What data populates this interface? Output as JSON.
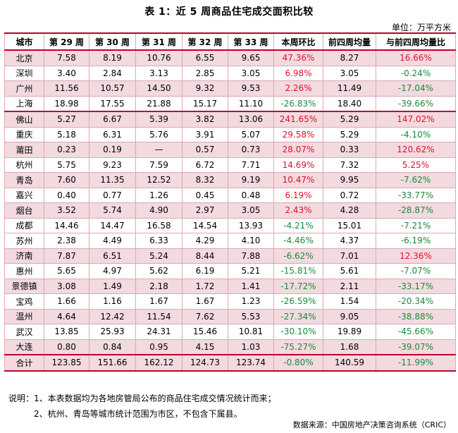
{
  "title": "表 1：近 5 周商品住宅成交面积比较",
  "unit": "单位：万平方米",
  "columns": [
    "城市",
    "第 29 周",
    "第 30 周",
    "第 31 周",
    "第 32 周",
    "第 33 周",
    "本周环比",
    "前四周均量",
    "与前四周均量比"
  ],
  "colors": {
    "accent": "#c0002c",
    "highlight": "#f2dadf",
    "up": "#e0102c",
    "down": "#1a8a3a"
  },
  "rows": [
    {
      "city": "北京",
      "w29": "7.58",
      "w30": "8.19",
      "w31": "10.76",
      "w32": "6.55",
      "w33": "9.65",
      "wow": "47.36%",
      "avg4": "8.27",
      "vsavg": "16.66%"
    },
    {
      "city": "深圳",
      "w29": "3.40",
      "w30": "2.84",
      "w31": "3.13",
      "w32": "2.85",
      "w33": "3.05",
      "wow": "6.98%",
      "avg4": "3.05",
      "vsavg": "-0.24%"
    },
    {
      "city": "广州",
      "w29": "11.56",
      "w30": "10.57",
      "w31": "14.50",
      "w32": "9.32",
      "w33": "9.53",
      "wow": "2.26%",
      "avg4": "11.49",
      "vsavg": "-17.04%"
    },
    {
      "city": "上海",
      "w29": "18.98",
      "w30": "17.55",
      "w31": "21.88",
      "w32": "15.17",
      "w33": "11.10",
      "wow": "-26.83%",
      "avg4": "18.40",
      "vsavg": "-39.66%"
    },
    {
      "city": "佛山",
      "w29": "5.27",
      "w30": "6.67",
      "w31": "5.39",
      "w32": "3.82",
      "w33": "13.06",
      "wow": "241.65%",
      "avg4": "5.29",
      "vsavg": "147.02%"
    },
    {
      "city": "重庆",
      "w29": "5.18",
      "w30": "6.31",
      "w31": "5.76",
      "w32": "3.91",
      "w33": "5.07",
      "wow": "29.58%",
      "avg4": "5.29",
      "vsavg": "-4.10%"
    },
    {
      "city": "莆田",
      "w29": "0.23",
      "w30": "0.19",
      "w31": "—",
      "w32": "0.57",
      "w33": "0.73",
      "wow": "28.07%",
      "avg4": "0.33",
      "vsavg": "120.62%"
    },
    {
      "city": "杭州",
      "w29": "5.75",
      "w30": "9.23",
      "w31": "7.59",
      "w32": "6.72",
      "w33": "7.71",
      "wow": "14.69%",
      "avg4": "7.32",
      "vsavg": "5.25%"
    },
    {
      "city": "青岛",
      "w29": "7.60",
      "w30": "11.35",
      "w31": "12.52",
      "w32": "8.32",
      "w33": "9.19",
      "wow": "10.47%",
      "avg4": "9.95",
      "vsavg": "-7.62%"
    },
    {
      "city": "嘉兴",
      "w29": "0.40",
      "w30": "0.77",
      "w31": "1.26",
      "w32": "0.45",
      "w33": "0.48",
      "wow": "6.19%",
      "avg4": "0.72",
      "vsavg": "-33.77%"
    },
    {
      "city": "烟台",
      "w29": "3.52",
      "w30": "5.74",
      "w31": "4.90",
      "w32": "2.97",
      "w33": "3.05",
      "wow": "2.43%",
      "avg4": "4.28",
      "vsavg": "-28.87%"
    },
    {
      "city": "成都",
      "w29": "14.46",
      "w30": "14.47",
      "w31": "16.58",
      "w32": "14.54",
      "w33": "13.93",
      "wow": "-4.21%",
      "avg4": "15.01",
      "vsavg": "-7.21%"
    },
    {
      "city": "苏州",
      "w29": "2.38",
      "w30": "4.49",
      "w31": "6.33",
      "w32": "4.29",
      "w33": "4.10",
      "wow": "-4.46%",
      "avg4": "4.37",
      "vsavg": "-6.19%"
    },
    {
      "city": "济南",
      "w29": "7.87",
      "w30": "6.51",
      "w31": "5.24",
      "w32": "8.44",
      "w33": "7.88",
      "wow": "-6.62%",
      "avg4": "7.01",
      "vsavg": "12.36%"
    },
    {
      "city": "惠州",
      "w29": "5.65",
      "w30": "4.97",
      "w31": "5.62",
      "w32": "6.19",
      "w33": "5.21",
      "wow": "-15.81%",
      "avg4": "5.61",
      "vsavg": "-7.07%"
    },
    {
      "city": "景德镇",
      "w29": "3.08",
      "w30": "1.49",
      "w31": "2.18",
      "w32": "1.72",
      "w33": "1.41",
      "wow": "-17.72%",
      "avg4": "2.11",
      "vsavg": "-33.17%"
    },
    {
      "city": "宝鸡",
      "w29": "1.66",
      "w30": "1.16",
      "w31": "1.67",
      "w32": "1.67",
      "w33": "1.23",
      "wow": "-26.59%",
      "avg4": "1.54",
      "vsavg": "-20.34%"
    },
    {
      "city": "温州",
      "w29": "4.64",
      "w30": "12.42",
      "w31": "11.54",
      "w32": "7.62",
      "w33": "5.53",
      "wow": "-27.34%",
      "avg4": "9.05",
      "vsavg": "-38.88%"
    },
    {
      "city": "武汉",
      "w29": "13.85",
      "w30": "25.93",
      "w31": "24.31",
      "w32": "15.46",
      "w33": "10.81",
      "wow": "-30.10%",
      "avg4": "19.89",
      "vsavg": "-45.66%"
    },
    {
      "city": "大连",
      "w29": "0.80",
      "w30": "0.84",
      "w31": "0.95",
      "w32": "4.15",
      "w33": "1.03",
      "wow": "-75.27%",
      "avg4": "1.68",
      "vsavg": "-39.07%"
    },
    {
      "city": "合计",
      "w29": "123.85",
      "w30": "151.66",
      "w31": "162.12",
      "w32": "124.73",
      "w33": "123.74",
      "wow": "-0.80%",
      "avg4": "140.59",
      "vsavg": "-11.99%"
    }
  ],
  "notes": [
    "说明：1、本表数据均为各地房管局公布的商品住宅成交情况统计而来；",
    "2、杭州、青岛等城市统计范围为市区，不包含下属县。"
  ],
  "source": "数据来源：中国房地产决策咨询系统（CRIC）"
}
